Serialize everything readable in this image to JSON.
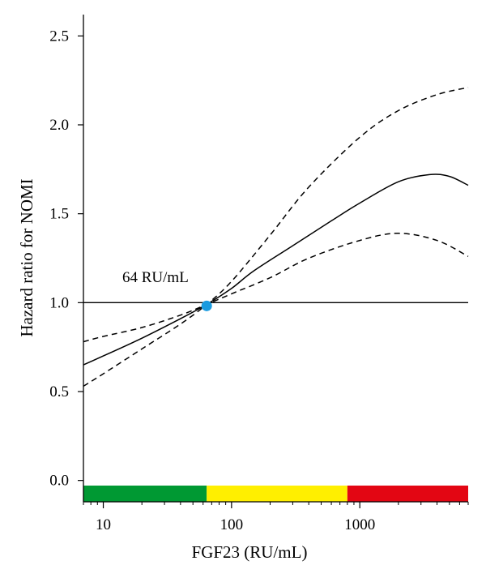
{
  "chart_data": {
    "type": "line",
    "title": "",
    "xlabel": "FGF23 (RU/mL)",
    "ylabel": "Hazard ratio for NOMI",
    "x_scale": "log",
    "xlim": [
      7,
      7000
    ],
    "ylim": [
      -0.12,
      2.62
    ],
    "x_ticks": [
      10,
      100,
      1000
    ],
    "x_tick_labels": [
      "10",
      "100",
      "1000"
    ],
    "y_ticks": [
      0.0,
      0.5,
      1.0,
      1.5,
      2.0,
      2.5
    ],
    "y_tick_labels": [
      "0.0",
      "0.5",
      "1.0",
      "1.5",
      "2.0",
      "2.5"
    ],
    "grid": false,
    "reference_line": {
      "y": 1.0
    },
    "annotation": {
      "text": "64 RU/mL",
      "x": 64,
      "y": 1.0,
      "marker_color": "#1a9be0"
    },
    "series": [
      {
        "style": "solid",
        "x": [
          7,
          10,
          20,
          40,
          64,
          100,
          150,
          300,
          600,
          1000,
          2000,
          3500,
          5000,
          7000
        ],
        "y": [
          0.65,
          0.7,
          0.8,
          0.91,
          0.99,
          1.08,
          1.18,
          1.32,
          1.46,
          1.56,
          1.68,
          1.72,
          1.71,
          1.66
        ]
      },
      {
        "style": "dashed",
        "x": [
          7,
          10,
          20,
          40,
          64,
          100,
          200,
          400,
          1000,
          2000,
          4000,
          7000
        ],
        "y": [
          0.78,
          0.81,
          0.86,
          0.93,
          0.99,
          1.05,
          1.14,
          1.25,
          1.35,
          1.39,
          1.35,
          1.26
        ]
      },
      {
        "style": "dashed",
        "x": [
          7,
          10,
          20,
          40,
          64,
          100,
          200,
          400,
          1000,
          2000,
          4000,
          7000
        ],
        "y": [
          0.53,
          0.6,
          0.74,
          0.88,
          0.99,
          1.12,
          1.38,
          1.65,
          1.93,
          2.08,
          2.17,
          2.21
        ]
      }
    ],
    "color_band": [
      {
        "from": 7,
        "to": 64,
        "color": "#009933"
      },
      {
        "from": 64,
        "to": 800,
        "color": "#ffef00"
      },
      {
        "from": 800,
        "to": 7000,
        "color": "#e30613"
      }
    ]
  }
}
